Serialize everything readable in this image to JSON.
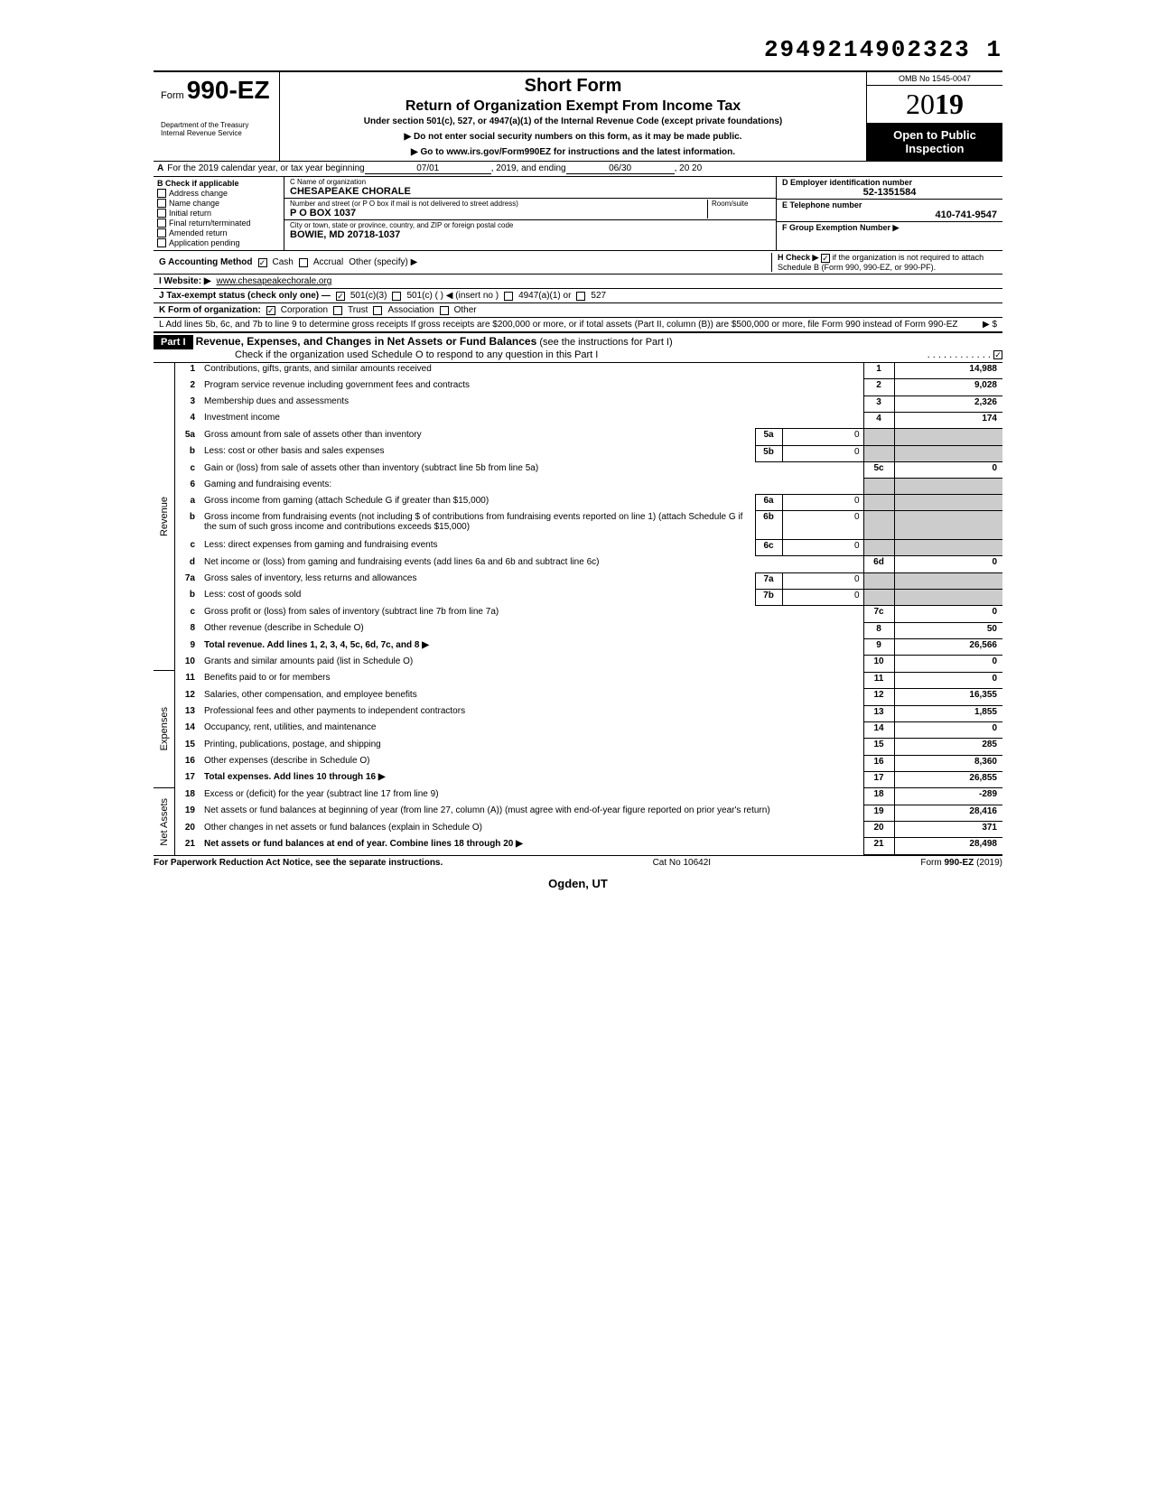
{
  "doc_id": "2949214902323 1",
  "form": {
    "prefix": "Form",
    "number": "990-EZ"
  },
  "dept": "Department of the Treasury\nInternal Revenue Service",
  "title1": "Short Form",
  "title2": "Return of Organization Exempt From Income Tax",
  "subtitle": "Under section 501(c), 527, or 4947(a)(1) of the Internal Revenue Code (except private foundations)",
  "note1": "▶ Do not enter social security numbers on this form, as it may be made public.",
  "note2": "▶ Go to www.irs.gov/Form990EZ for instructions and the latest information.",
  "omb": "OMB No 1545-0047",
  "year": "2019",
  "open_pub": "Open to Public Inspection",
  "lineA": {
    "label": "A",
    "text": "For the 2019 calendar year, or tax year beginning",
    "begin": "07/01",
    "mid": ", 2019, and ending",
    "end": "06/30",
    "endyr": ", 20   20"
  },
  "B": {
    "label": "B Check if applicable",
    "items": [
      "Address change",
      "Name change",
      "Initial return",
      "Final return/terminated",
      "Amended return",
      "Application pending"
    ]
  },
  "C": {
    "label": "C Name of organization",
    "name": "CHESAPEAKE CHORALE",
    "addr_label": "Number and street (or P O box if mail is not delivered to street address)",
    "address": "P O BOX 1037",
    "city_label": "City or town, state or province, country, and ZIP or foreign postal code",
    "city": "BOWIE, MD  20718-1037",
    "room": "Room/suite"
  },
  "D": {
    "label": "D Employer identification number",
    "value": "52-1351584"
  },
  "E": {
    "label": "E Telephone number",
    "value": "410-741-9547"
  },
  "F": {
    "label": "F Group Exemption Number ▶",
    "value": ""
  },
  "G": {
    "label": "G Accounting Method",
    "cash": "Cash",
    "accrual": "Accrual",
    "other": "Other (specify) ▶"
  },
  "H": {
    "label": "H Check ▶",
    "text": "if the organization is not required to attach Schedule B (Form 990, 990-EZ, or 990-PF)."
  },
  "I": {
    "label": "I  Website: ▶",
    "value": "www.chesapeakechorale.org"
  },
  "J": {
    "label": "J Tax-exempt status (check only one) —",
    "opts": [
      "501(c)(3)",
      "501(c) (          ) ◀ (insert no )",
      "4947(a)(1) or",
      "527"
    ]
  },
  "K": {
    "label": "K Form of organization:",
    "opts": [
      "Corporation",
      "Trust",
      "Association",
      "Other"
    ]
  },
  "L": {
    "text": "L Add lines 5b, 6c, and 7b to line 9 to determine gross receipts  If gross receipts are $200,000 or more, or if total assets (Part II, column (B)) are $500,000 or more, file Form 990 instead of Form 990-EZ",
    "arrow": "▶  $"
  },
  "part1": {
    "label": "Part I",
    "title": "Revenue, Expenses, and Changes in Net Assets or Fund Balances",
    "sub": "(see the instructions for Part I)",
    "check_note": "Check if the organization used Schedule O to respond to any question in this Part I"
  },
  "sections": {
    "revenue": "Revenue",
    "expenses": "Expenses",
    "netassets": "Net Assets"
  },
  "lines": [
    {
      "n": "1",
      "t": "Contributions, gifts, grants, and similar amounts received",
      "box": "1",
      "amt": "14,988"
    },
    {
      "n": "2",
      "t": "Program service revenue including government fees and contracts",
      "box": "2",
      "amt": "9,028"
    },
    {
      "n": "3",
      "t": "Membership dues and assessments",
      "box": "3",
      "amt": "2,326"
    },
    {
      "n": "4",
      "t": "Investment income",
      "box": "4",
      "amt": "174"
    },
    {
      "n": "5a",
      "t": "Gross amount from sale of assets other than inventory",
      "ibox": "5a",
      "iamt": "0"
    },
    {
      "n": "b",
      "t": "Less: cost or other basis and sales expenses",
      "ibox": "5b",
      "iamt": "0"
    },
    {
      "n": "c",
      "t": "Gain or (loss) from sale of assets other than inventory (subtract line 5b from line 5a)",
      "box": "5c",
      "amt": "0"
    },
    {
      "n": "6",
      "t": "Gaming and fundraising events:"
    },
    {
      "n": "a",
      "t": "Gross income from gaming (attach Schedule G if greater than $15,000)",
      "ibox": "6a",
      "iamt": "0"
    },
    {
      "n": "b",
      "t": "Gross income from fundraising events (not including  $                    of contributions from fundraising events reported on line 1) (attach Schedule G if the sum of such gross income and contributions exceeds $15,000)",
      "ibox": "6b",
      "iamt": "0"
    },
    {
      "n": "c",
      "t": "Less: direct expenses from gaming and fundraising events",
      "ibox": "6c",
      "iamt": "0"
    },
    {
      "n": "d",
      "t": "Net income or (loss) from gaming and fundraising events (add lines 6a and 6b and subtract line 6c)",
      "box": "6d",
      "amt": "0"
    },
    {
      "n": "7a",
      "t": "Gross sales of inventory, less returns and allowances",
      "ibox": "7a",
      "iamt": "0"
    },
    {
      "n": "b",
      "t": "Less: cost of goods sold",
      "ibox": "7b",
      "iamt": "0"
    },
    {
      "n": "c",
      "t": "Gross profit or (loss) from sales of inventory (subtract line 7b from line 7a)",
      "box": "7c",
      "amt": "0"
    },
    {
      "n": "8",
      "t": "Other revenue (describe in Schedule O)",
      "box": "8",
      "amt": "50"
    },
    {
      "n": "9",
      "t": "Total revenue. Add lines 1, 2, 3, 4, 5c, 6d, 7c, and 8   ▶",
      "box": "9",
      "amt": "26,566",
      "bold": true
    },
    {
      "n": "10",
      "t": "Grants and similar amounts paid (list in Schedule O)",
      "box": "10",
      "amt": "0"
    },
    {
      "n": "11",
      "t": "Benefits paid to or for members",
      "box": "11",
      "amt": "0"
    },
    {
      "n": "12",
      "t": "Salaries, other compensation, and employee benefits",
      "box": "12",
      "amt": "16,355"
    },
    {
      "n": "13",
      "t": "Professional fees and other payments to independent contractors",
      "box": "13",
      "amt": "1,855"
    },
    {
      "n": "14",
      "t": "Occupancy, rent, utilities, and maintenance",
      "box": "14",
      "amt": "0"
    },
    {
      "n": "15",
      "t": "Printing, publications, postage, and shipping",
      "box": "15",
      "amt": "285"
    },
    {
      "n": "16",
      "t": "Other expenses (describe in Schedule O)",
      "box": "16",
      "amt": "8,360"
    },
    {
      "n": "17",
      "t": "Total expenses. Add lines 10 through 16   ▶",
      "box": "17",
      "amt": "26,855",
      "bold": true
    },
    {
      "n": "18",
      "t": "Excess or (deficit) for the year (subtract line 17 from line 9)",
      "box": "18",
      "amt": "-289"
    },
    {
      "n": "19",
      "t": "Net assets or fund balances at beginning of year (from line 27, column (A)) (must agree with end-of-year figure reported on prior year's return)",
      "box": "19",
      "amt": "28,416"
    },
    {
      "n": "20",
      "t": "Other changes in net assets or fund balances (explain in Schedule O)",
      "box": "20",
      "amt": "371"
    },
    {
      "n": "21",
      "t": "Net assets or fund balances at end of year. Combine lines 18 through 20   ▶",
      "box": "21",
      "amt": "28,498",
      "bold": true
    }
  ],
  "footer": {
    "left": "For Paperwork Reduction Act Notice, see the separate instructions.",
    "mid": "Cat  No  10642I",
    "right": "Form 990-EZ (2019)"
  },
  "stamp": "Ogden, UT"
}
